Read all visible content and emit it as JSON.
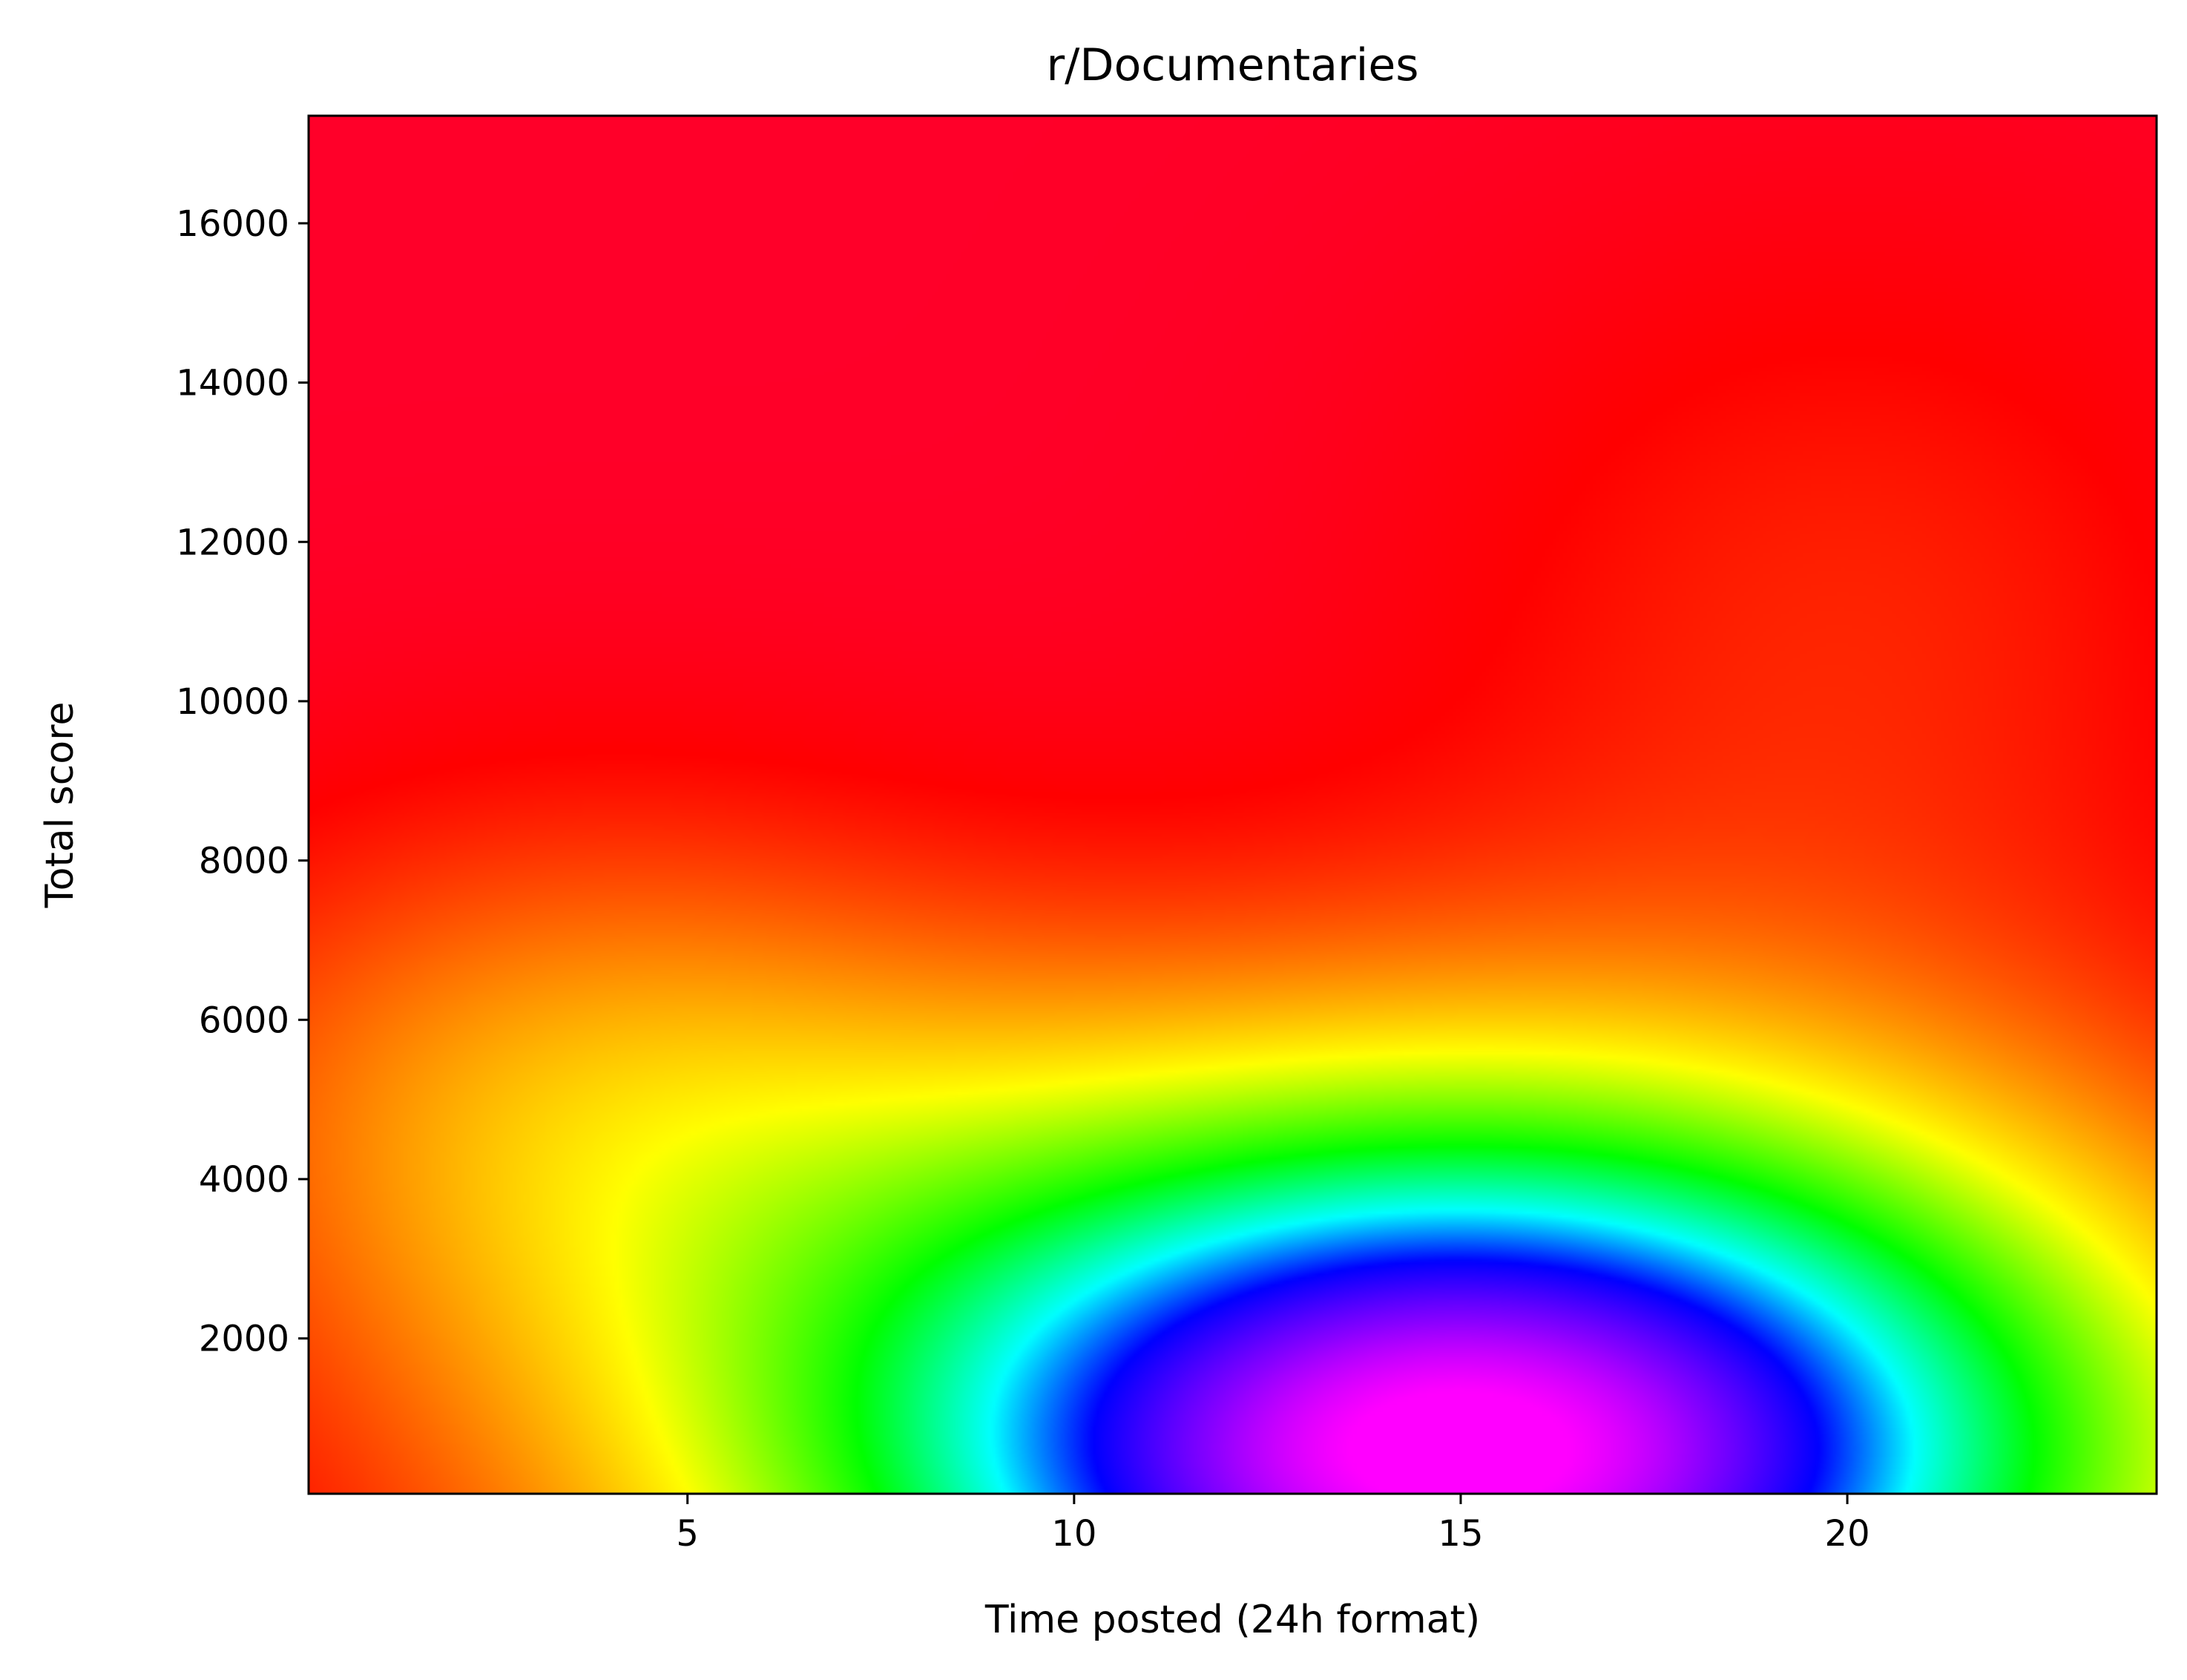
{
  "chart_data": {
    "type": "heatmap",
    "title": "r/Documentaries",
    "xlabel": "Time posted (24h format)",
    "ylabel": "Total score",
    "xlim": [
      0.1,
      24
    ],
    "ylim": [
      50,
      17350
    ],
    "xticks": [
      5,
      10,
      15,
      20
    ],
    "yticks": [
      2000,
      4000,
      6000,
      8000,
      10000,
      12000,
      14000,
      16000
    ],
    "colormap": "gist_rainbow",
    "colormap_stops": [
      {
        "pos": 0.0,
        "color": "#ff0029"
      },
      {
        "pos": 0.05,
        "color": "#ff0000"
      },
      {
        "pos": 0.3,
        "color": "#ffff00"
      },
      {
        "pos": 0.47,
        "color": "#00ff00"
      },
      {
        "pos": 0.6,
        "color": "#00ffff"
      },
      {
        "pos": 0.7,
        "color": "#0000ff"
      },
      {
        "pos": 0.8,
        "color": "#8800ff"
      },
      {
        "pos": 0.88,
        "color": "#ff00ff"
      }
    ],
    "density_peaks": [
      {
        "x": 15,
        "y": 600,
        "amplitude": 0.9,
        "sx": 6.5,
        "sy": 3300
      },
      {
        "x": 3.5,
        "y": 5000,
        "amplitude": 0.18,
        "sx": 4,
        "sy": 2600
      },
      {
        "x": 20,
        "y": 11000,
        "amplitude": 0.08,
        "sx": 4,
        "sy": 3500
      }
    ],
    "grid": false,
    "legend": "none"
  }
}
